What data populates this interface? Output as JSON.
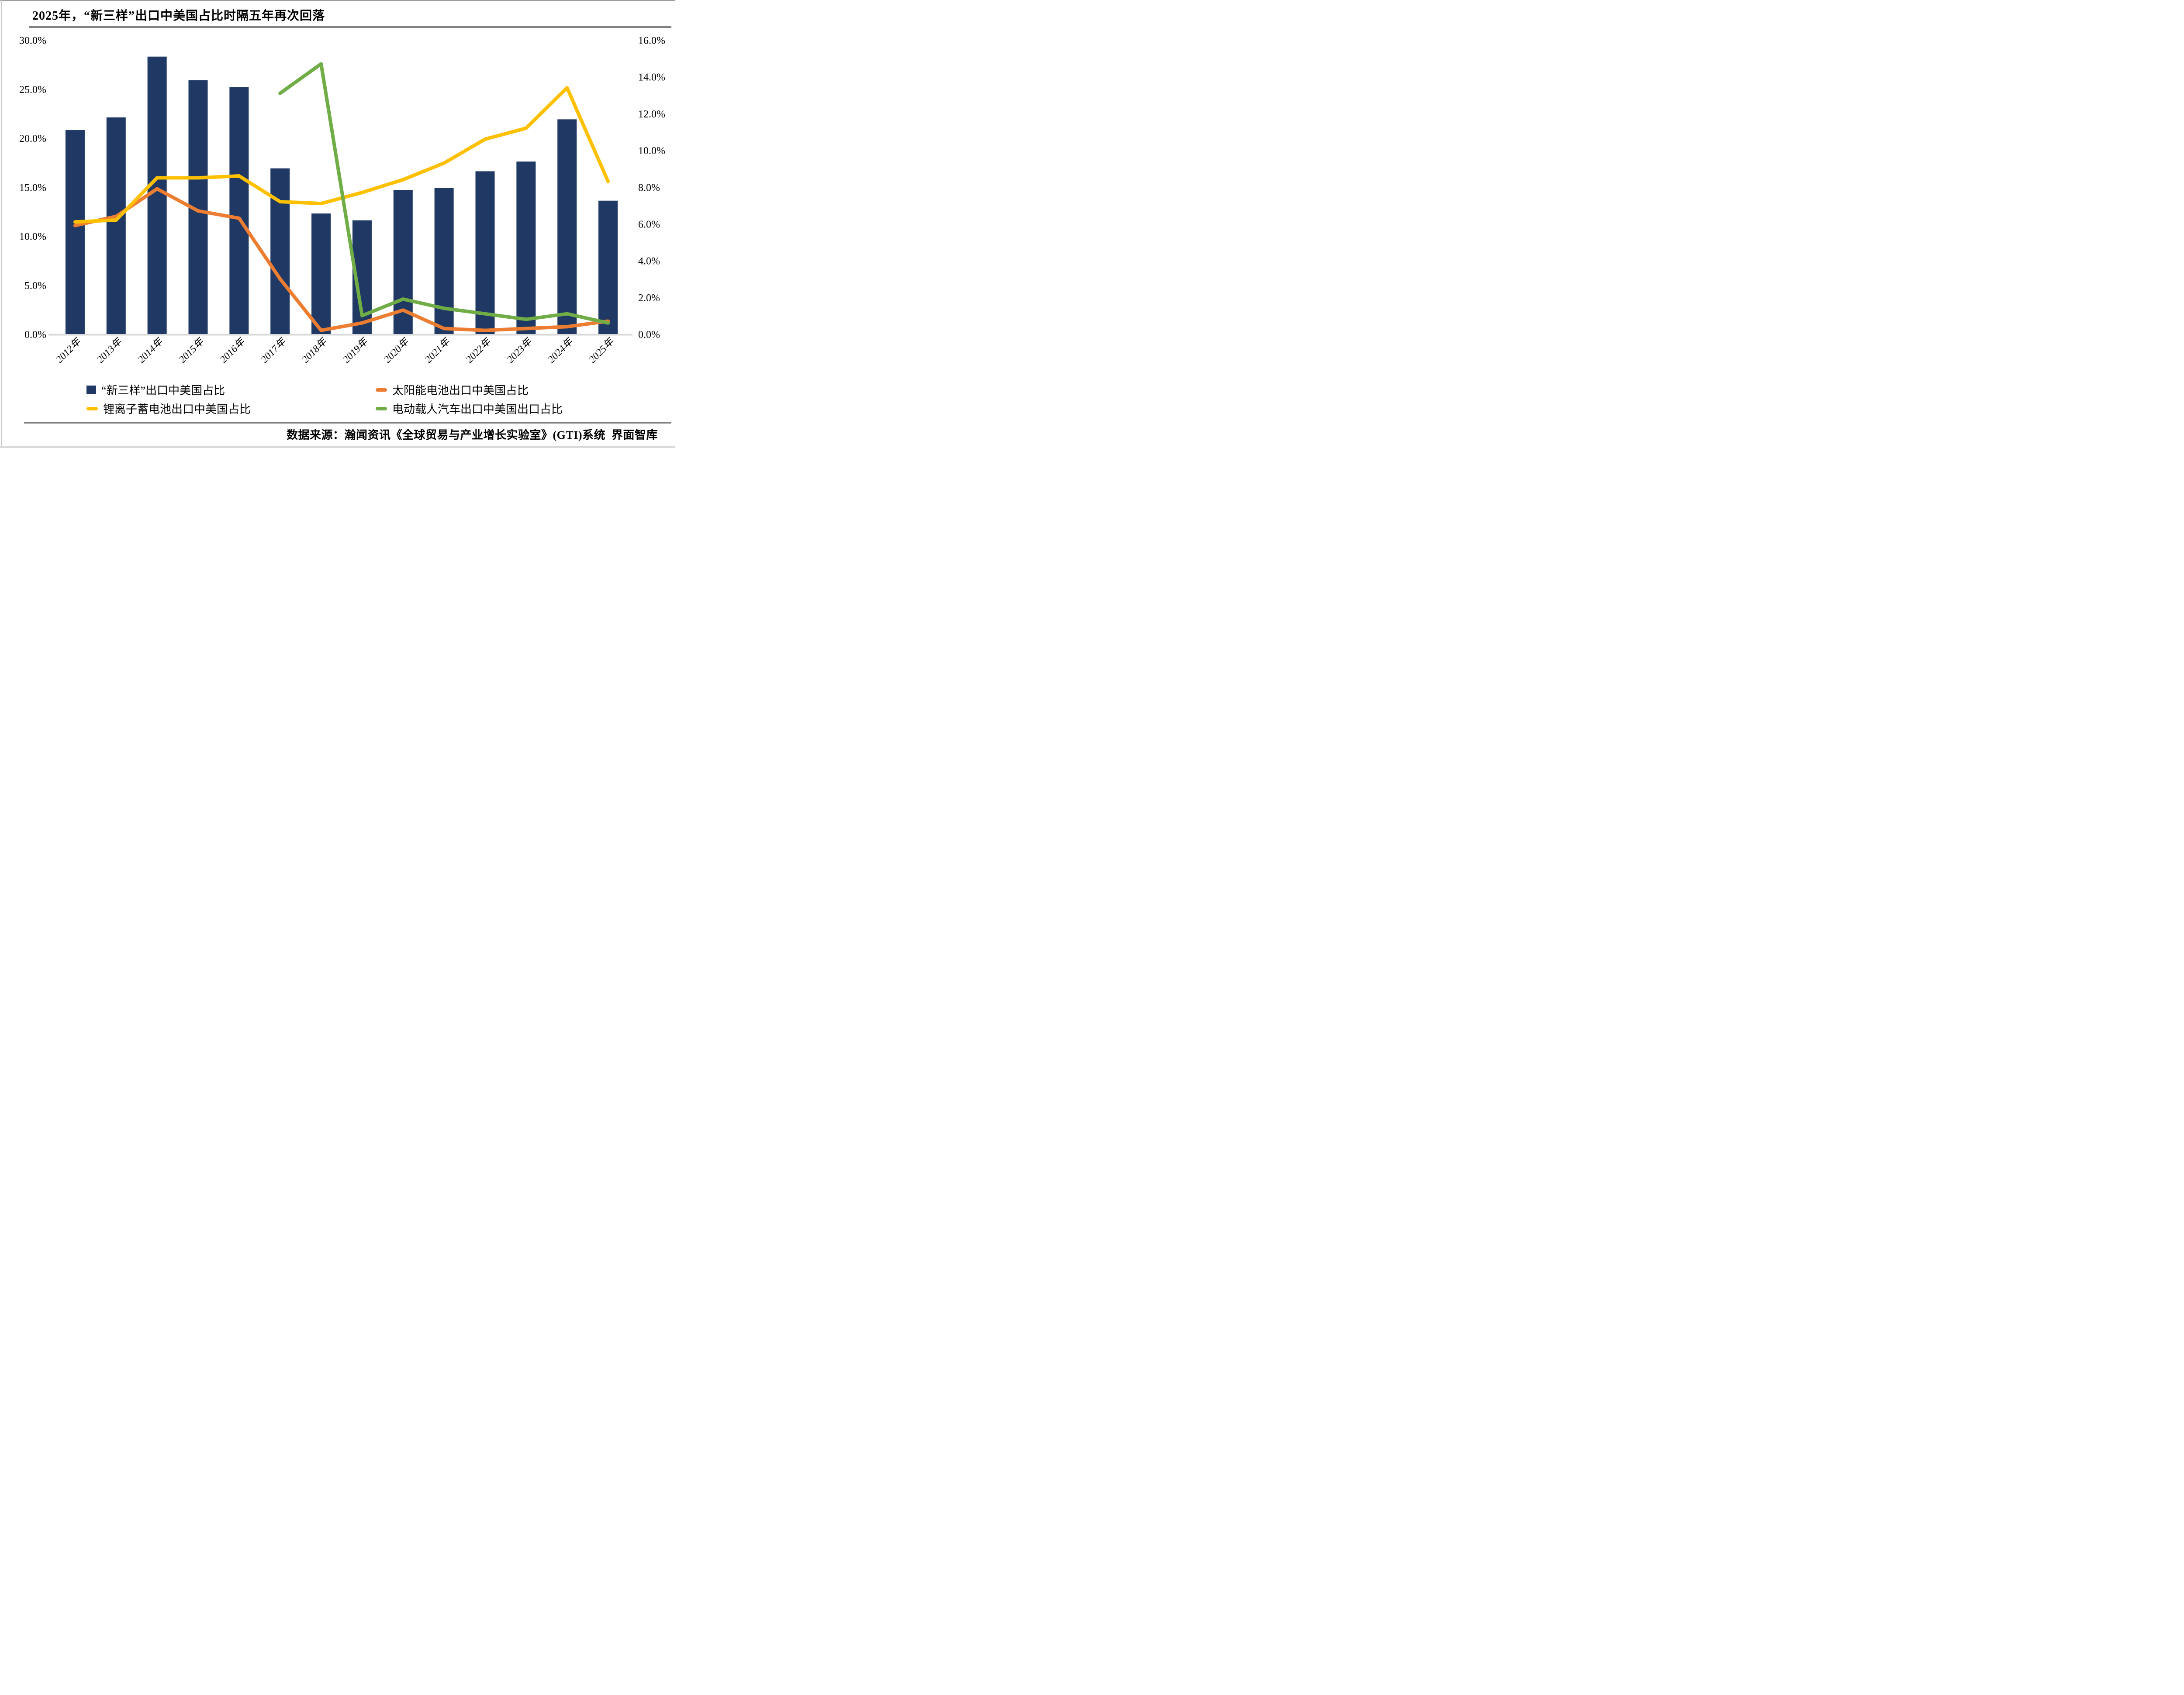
{
  "title": "2025年，“新三样”出口中美国占比时隔五年再次回落",
  "source": "数据来源：瀚闻资讯《全球贸易与产业增长实验室》(GTI)系统  界面智库",
  "colors": {
    "bar": "#1F3864",
    "solar": "#ED7D31",
    "lithium": "#FFC000",
    "ev": "#70AD47",
    "rule": "#808080",
    "axis_line": "#D9D9D9",
    "page_edge": "#D9D9D9"
  },
  "chart_data": {
    "type": "bar+line combo",
    "categories": [
      "2012年",
      "2013年",
      "2014年",
      "2015年",
      "2016年",
      "2017年",
      "2018年",
      "2019年",
      "2020年",
      "2021年",
      "2022年",
      "2023年",
      "2024年",
      "2025年"
    ],
    "series": [
      {
        "key": "new_three",
        "name": "“新三样”出口中美国占比",
        "type": "bar",
        "axis": "left",
        "color": "#1F3864",
        "values": [
          20.8,
          22.1,
          28.3,
          25.9,
          25.2,
          16.9,
          12.3,
          11.6,
          14.7,
          14.9,
          16.6,
          17.6,
          21.9,
          13.6
        ]
      },
      {
        "key": "solar",
        "name": "太阳能电池出口中美国占比",
        "type": "line",
        "axis": "right",
        "color": "#ED7D31",
        "values": [
          5.9,
          6.4,
          7.9,
          6.7,
          6.3,
          3.0,
          0.2,
          0.6,
          1.3,
          0.3,
          0.2,
          0.3,
          0.4,
          0.7
        ]
      },
      {
        "key": "lithium",
        "name": "锂离子蓄电池出口中美国占比",
        "type": "line",
        "axis": "right",
        "color": "#FFC000",
        "values": [
          6.1,
          6.2,
          8.5,
          8.5,
          8.6,
          7.2,
          7.1,
          7.7,
          8.4,
          9.3,
          10.6,
          11.2,
          13.4,
          8.3
        ]
      },
      {
        "key": "ev",
        "name": "电动载人汽车出口中美国出口占比",
        "type": "line",
        "axis": "right",
        "color": "#70AD47",
        "values": [
          null,
          null,
          null,
          null,
          null,
          13.1,
          14.7,
          1.0,
          1.9,
          1.4,
          1.1,
          0.8,
          1.1,
          0.6
        ]
      }
    ],
    "left_axis": {
      "min": 0,
      "max": 30,
      "step": 5,
      "tick_labels": [
        "30.0%",
        "25.0%",
        "20.0%",
        "15.0%",
        "10.0%",
        "5.0%",
        "0.0%"
      ]
    },
    "right_axis": {
      "min": 0,
      "max": 16,
      "step": 2,
      "tick_labels": [
        "16.0%",
        "14.0%",
        "12.0%",
        "10.0%",
        "8.0%",
        "6.0%",
        "4.0%",
        "2.0%",
        "0.0%"
      ]
    },
    "grid": "off",
    "legend_position": "bottom"
  }
}
